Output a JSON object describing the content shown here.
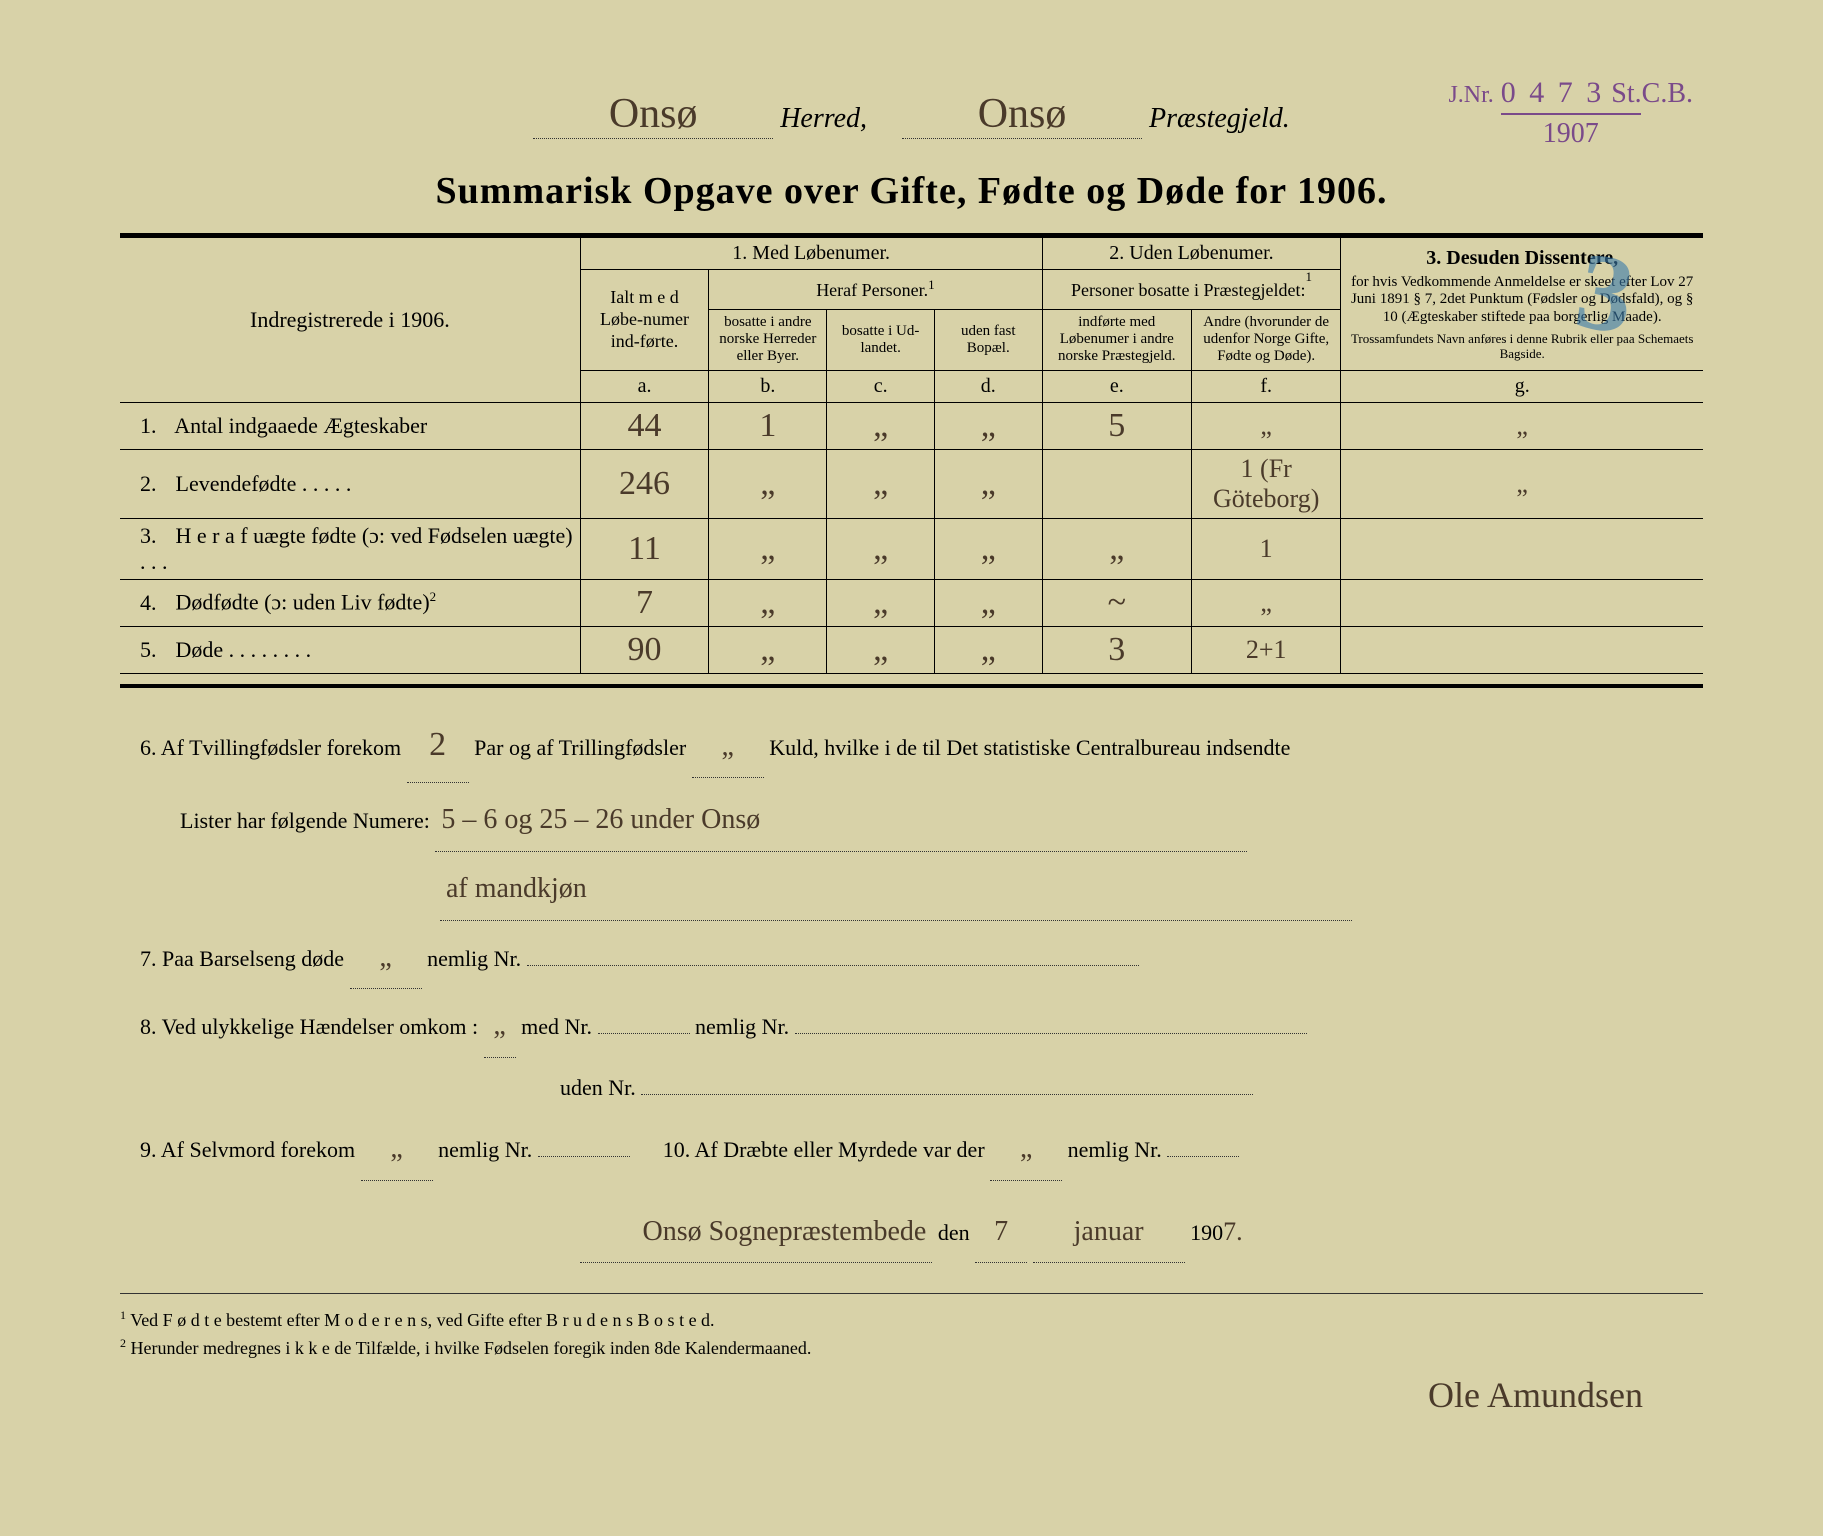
{
  "stamp": {
    "jnr_label": "J.Nr.",
    "number": "0 4 7 3",
    "stcb": "St.C.B.",
    "year": "1907"
  },
  "header": {
    "herred_value": "Onsø",
    "herred_label": "Herred,",
    "praestegjeld_value": "Onsø",
    "praestegjeld_label": "Præstegjeld."
  },
  "title": "Summarisk Opgave over Gifte, Fødte og Døde for 1906.",
  "blue_mark": "3",
  "table": {
    "left_header": "Indregistrerede i 1906.",
    "section1": {
      "title": "1.  Med  Løbenumer.",
      "ialt": "Ialt m e d Løbe-numer ind-førte.",
      "heraf": "Heraf Personer.",
      "col_b": "bosatte i andre norske Herreder eller Byer.",
      "col_c": "bosatte i Ud-landet.",
      "col_d": "uden fast Bopæl.",
      "a": "a.",
      "b": "b.",
      "c": "c.",
      "d": "d."
    },
    "section2": {
      "title": "2. Uden Løbenumer.",
      "sub": "Personer bosatte i Præstegjeldet:",
      "col_e": "indførte med Løbenumer i andre norske Præstegjeld.",
      "col_f": "Andre (hvorunder de udenfor Norge Gifte, Fødte og Døde).",
      "e": "e.",
      "f": "f."
    },
    "section3": {
      "title": "3.  Desuden Dissentere,",
      "body": "for hvis Vedkommende Anmeldelse er skeet efter Lov 27 Juni 1891 § 7, 2det Punktum (Fødsler og Dødsfald), og § 10 (Ægteskaber stiftede paa borgerlig Maade).",
      "note": "Trossamfundets Navn anføres i denne Rubrik eller paa Schemaets Bagside.",
      "g": "g."
    },
    "rows": [
      {
        "num": "1.",
        "label": "Antal indgaaede Ægteskaber",
        "a": "44",
        "b": "1",
        "c": "„",
        "d": "„",
        "e": "5",
        "f": "„",
        "g": "„"
      },
      {
        "num": "2.",
        "label": "Levendefødte  .  .  .  .  .",
        "a": "246",
        "b": "„",
        "c": "„",
        "d": "„",
        "e": "",
        "f": "1 (Fr Göteborg)",
        "g": "„"
      },
      {
        "num": "3.",
        "label": "H e r a f uægte fødte (ɔ: ved Fødselen uægte)  .  .  .",
        "a": "11",
        "b": "„",
        "c": "„",
        "d": "„",
        "e": "„",
        "f": "1",
        "g": ""
      },
      {
        "num": "4.",
        "label": "Dødfødte (ɔ: uden Liv fødte)",
        "a": "7",
        "b": "„",
        "c": "„",
        "d": "„",
        "e": "~",
        "f": "„",
        "g": ""
      },
      {
        "num": "5.",
        "label": "Døde  .  .  .  .  .  .  .  .",
        "a": "90",
        "b": "„",
        "c": "„",
        "d": "„",
        "e": "3",
        "f": "2+1",
        "g": ""
      }
    ]
  },
  "lower": {
    "item6_a": "6.   Af Tvillingfødsler forekom",
    "item6_twin": "2",
    "item6_b": "Par og af Trillingfødsler",
    "item6_trip": "„",
    "item6_c": "Kuld, hvilke i de til Det statistiske Centralbureau indsendte",
    "item6_d": "Lister har følgende Numere:",
    "item6_nums": "5 – 6  og  25 – 26  under  Onsø",
    "item6_nums2": "af mandkjøn",
    "item7": "7.   Paa Barselseng døde",
    "item7_v": "„",
    "item7_b": "nemlig Nr.",
    "item8": "8.   Ved ulykkelige Hændelser omkom :",
    "item8_med": "med Nr.",
    "item8_nemlig": "nemlig Nr.",
    "item8_uden": "uden Nr.",
    "item9": "9.   Af Selvmord forekom",
    "item9_v": "„",
    "item9_b": "nemlig Nr.",
    "item10": "10.   Af Dræbte eller Myrdede var der",
    "item10_v": "„",
    "item10_b": "nemlig Nr."
  },
  "date": {
    "place": "Onsø Sognepræstembede",
    "den": "den",
    "day": "7",
    "month": "januar",
    "year_prefix": "190",
    "year_suffix": "7."
  },
  "signature": "Ole Amundsen",
  "footnotes": {
    "f1": "Ved F ø d t e bestemt efter M o d e r e n s, ved Gifte efter B r u d e n s  B o s t e d.",
    "f2": "Herunder medregnes i k k e de Tilfælde, i hvilke Fødselen foregik inden 8de Kalendermaaned."
  },
  "sup1": "1",
  "sup2": "2"
}
